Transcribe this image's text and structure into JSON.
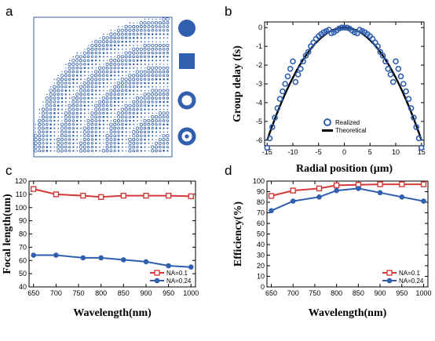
{
  "panels": {
    "a": {
      "label": "a"
    },
    "b": {
      "label": "b"
    },
    "c": {
      "label": "c"
    },
    "d": {
      "label": "d"
    }
  },
  "colors": {
    "blue": "#2f5fae",
    "red": "#d23a3a",
    "black": "#000000"
  },
  "panel_a": {
    "legend_shapes": [
      "filled-circle-icon",
      "filled-square-icon",
      "ring-icon",
      "ring-with-dot-icon"
    ]
  },
  "chart_data": [
    {
      "id": "b",
      "type": "scatter",
      "xlabel": "Radial position (μm)",
      "ylabel": "Group delay (fs)",
      "xlim": [
        -15.5,
        15.5
      ],
      "ylim": [
        -6.3,
        0.3
      ],
      "xticks": [
        -15,
        -10,
        -5,
        0,
        5,
        10,
        15
      ],
      "yticks": [
        0,
        -1,
        -2,
        -3,
        -4,
        -5,
        -6
      ],
      "legend_position": "bottom-center",
      "series": [
        {
          "name": "Realized",
          "marker": "open-circle",
          "x": [
            -15,
            -14.5,
            -14,
            -13.5,
            -13,
            -12.5,
            -12,
            -11.5,
            -11,
            -10.5,
            -10,
            -9.5,
            -9,
            -8.5,
            -8,
            -7.5,
            -7,
            -6.5,
            -6,
            -5.5,
            -5,
            -4.5,
            -4,
            -3.5,
            -3,
            -2.5,
            -2,
            -1.5,
            -1,
            -0.5,
            0,
            0.5,
            1,
            1.5,
            2,
            2.5,
            3,
            3.5,
            4,
            4.5,
            5,
            5.5,
            6,
            6.5,
            7,
            7.5,
            8,
            8.5,
            9,
            9.5,
            10,
            10.5,
            11,
            11.5,
            12,
            12.5,
            13,
            13.5,
            14,
            14.5,
            15
          ],
          "y": [
            -6.4,
            -5.9,
            -5.3,
            -4.8,
            -4.3,
            -3.8,
            -3.4,
            -3.0,
            -2.6,
            -2.2,
            -1.8,
            -2.9,
            -2.5,
            -2.2,
            -1.8,
            -1.5,
            -1.3,
            -1.0,
            -0.8,
            -0.6,
            -0.45,
            -0.35,
            -0.25,
            -0.18,
            -0.12,
            -0.3,
            -0.25,
            -0.15,
            -0.05,
            0.0,
            0.0,
            0.0,
            -0.05,
            -0.15,
            -0.25,
            -0.3,
            -0.12,
            -0.18,
            -0.25,
            -0.35,
            -0.45,
            -0.6,
            -0.8,
            -1.0,
            -1.3,
            -1.5,
            -1.8,
            -2.2,
            -2.5,
            -2.9,
            -1.8,
            -2.2,
            -2.6,
            -3.0,
            -3.4,
            -3.8,
            -4.3,
            -4.8,
            -5.3,
            -5.9,
            -6.4
          ]
        },
        {
          "name": "Theoretical",
          "marker": "line",
          "a": -0.02667
        }
      ]
    },
    {
      "id": "c",
      "type": "line",
      "xlabel": "Wavelength(nm)",
      "ylabel": "Focal length(um)",
      "x": [
        650,
        700,
        760,
        800,
        850,
        900,
        950,
        1000
      ],
      "xlim": [
        640,
        1010
      ],
      "ylim": [
        40,
        120
      ],
      "xticks": [
        650,
        700,
        750,
        800,
        850,
        900,
        950,
        1000
      ],
      "yticks": [
        40,
        50,
        60,
        70,
        80,
        90,
        100,
        110,
        120
      ],
      "legend_position": "bottom-right",
      "series": [
        {
          "name": "NA=0.1",
          "marker": "square",
          "values": [
            114,
            110,
            109,
            108,
            109,
            109,
            109,
            108.5
          ]
        },
        {
          "name": "NA=0.24",
          "marker": "circle",
          "values": [
            64,
            64,
            62,
            62,
            60.5,
            59,
            56,
            55
          ]
        }
      ]
    },
    {
      "id": "d",
      "type": "line",
      "xlabel": "Wavelength(nm)",
      "ylabel": "Efficiency(%)",
      "x": [
        650,
        700,
        760,
        800,
        850,
        900,
        950,
        1000
      ],
      "xlim": [
        640,
        1010
      ],
      "ylim": [
        0,
        100
      ],
      "xticks": [
        650,
        700,
        750,
        800,
        850,
        900,
        950,
        1000
      ],
      "yticks": [
        0,
        10,
        20,
        30,
        40,
        50,
        60,
        70,
        80,
        90,
        100
      ],
      "legend_position": "bottom-right",
      "series": [
        {
          "name": "NA=0.1",
          "marker": "square",
          "values": [
            86,
            91,
            93,
            96,
            96.5,
            97,
            97,
            97
          ]
        },
        {
          "name": "NA=0.24",
          "marker": "circle",
          "values": [
            72,
            81,
            85,
            91,
            93,
            89,
            85,
            81
          ]
        }
      ]
    }
  ]
}
